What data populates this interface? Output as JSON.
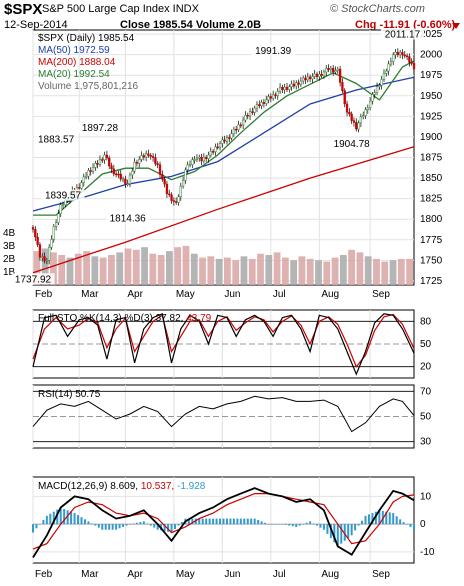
{
  "header": {
    "symbol": "$SPX",
    "name": "S&P 500 Large Cap Index INDX",
    "date": "12-Sep-2014",
    "quote": "Close 1985.54  Volume 2.0B",
    "change": "Chg -11.91 (-0.60%)",
    "logo": "© StockCharts.com",
    "change_color": "#c00000"
  },
  "chart_data": [
    {
      "type": "candlestick",
      "legend": [
        {
          "text": "$SPX (Daily) 1985.54",
          "color": "#000000"
        },
        {
          "text": "MA(50) 1972.59",
          "color": "#1f3fa8"
        },
        {
          "text": "MA(200) 1888.04",
          "color": "#cc0000"
        },
        {
          "text": "MA(20) 1992.54",
          "color": "#2e7d32"
        },
        {
          "text": "Volume 1,975,801,216",
          "color": "#666666"
        }
      ],
      "ylim": [
        1720,
        2030
      ],
      "y_ticks": [
        2025,
        2000,
        1975,
        1950,
        1925,
        1900,
        1875,
        1850,
        1825,
        1800,
        1775,
        1750,
        1725
      ],
      "volume_ticks": [
        "4B",
        "3B",
        "2B",
        "1B"
      ],
      "annotations": [
        {
          "text": "1737.92",
          "value": 1737.92
        },
        {
          "text": "1883.57",
          "value": 1883.57
        },
        {
          "text": "1839.57",
          "value": 1839.57
        },
        {
          "text": "1897.28",
          "value": 1897.28
        },
        {
          "text": "1814.36",
          "value": 1814.36
        },
        {
          "text": "1991.39",
          "value": 1991.39
        },
        {
          "text": "1904.78",
          "value": 1904.78
        },
        {
          "text": "2011.17",
          "value": 2011.17
        }
      ],
      "close_path": {
        "x": [
          0,
          3,
          6,
          9,
          12,
          16,
          20,
          24,
          28,
          31,
          34,
          38,
          41,
          44,
          47,
          50,
          54,
          58,
          62,
          66,
          70,
          73,
          77,
          80,
          84,
          88,
          92,
          96,
          101,
          104,
          107,
          110,
          113,
          116,
          120,
          124,
          128,
          132,
          136,
          140,
          144,
          148,
          152,
          156,
          160,
          165
        ],
        "close": [
          1790,
          1755,
          1750,
          1790,
          1815,
          1830,
          1840,
          1858,
          1868,
          1878,
          1860,
          1850,
          1843,
          1868,
          1875,
          1880,
          1865,
          1832,
          1818,
          1860,
          1875,
          1872,
          1880,
          1890,
          1898,
          1910,
          1924,
          1935,
          1945,
          1950,
          1958,
          1960,
          1963,
          1968,
          1973,
          1975,
          1983,
          1980,
          1930,
          1912,
          1932,
          1955,
          1975,
          2000,
          2002,
          1985
        ]
      },
      "ma50": {
        "x": [
          0,
          20,
          40,
          60,
          80,
          100,
          120,
          140,
          165
        ],
        "y": [
          1810,
          1825,
          1842,
          1852,
          1870,
          1905,
          1940,
          1957,
          1972.59
        ]
      },
      "ma200": {
        "x": [
          0,
          40,
          80,
          120,
          165
        ],
        "y": [
          1735,
          1772,
          1812,
          1850,
          1888.04
        ]
      },
      "ma20": {
        "x": [
          0,
          10,
          20,
          30,
          40,
          50,
          60,
          70,
          80,
          90,
          100,
          110,
          120,
          130,
          140,
          150,
          160,
          165
        ],
        "y": [
          1805,
          1805,
          1830,
          1855,
          1862,
          1862,
          1848,
          1858,
          1878,
          1905,
          1930,
          1950,
          1964,
          1978,
          1965,
          1945,
          1985,
          1992.54
        ]
      },
      "volume": [
        2.6,
        2.8,
        2.5,
        2.3,
        2.1,
        2.4,
        2.6,
        2.2,
        2.1,
        2.3,
        2.5,
        2.8,
        2.7,
        2.9,
        2.4,
        2.3,
        2.6,
        2.9,
        3.0,
        2.4,
        2.1,
        2.2,
        2.0,
        2.1,
        1.9,
        2.2,
        2.0,
        2.4,
        2.3,
        2.5,
        2.1,
        1.9,
        2.2,
        2.0,
        1.9,
        1.8,
        2.1,
        2.3,
        2.7,
        2.5,
        2.2,
        2.0,
        1.8,
        1.9,
        2.0,
        2.0
      ]
    },
    {
      "type": "line",
      "legend": [
        {
          "text": "Full STO %K(14,3) %D(3) 37.82,",
          "color": "#000000"
        },
        {
          "text": "43.79",
          "color": "#cc0000"
        }
      ],
      "ylim": [
        5,
        95
      ],
      "y_ticks": [
        80,
        50,
        20
      ],
      "series": [
        {
          "name": "%K(14,3)",
          "x": [
            0,
            5,
            10,
            15,
            20,
            24,
            28,
            32,
            36,
            40,
            44,
            48,
            52,
            56,
            60,
            64,
            68,
            72,
            76,
            80,
            84,
            88,
            92,
            96,
            100,
            104,
            108,
            112,
            116,
            120,
            124,
            128,
            132,
            136,
            140,
            144,
            148,
            152,
            156,
            160,
            165
          ],
          "y": [
            20,
            85,
            88,
            60,
            82,
            85,
            75,
            30,
            82,
            85,
            25,
            70,
            85,
            90,
            25,
            70,
            88,
            80,
            50,
            88,
            85,
            60,
            82,
            88,
            80,
            60,
            85,
            88,
            70,
            40,
            88,
            85,
            70,
            40,
            10,
            40,
            78,
            90,
            88,
            70,
            37.82
          ]
        },
        {
          "name": "%D(3)",
          "x": [
            0,
            5,
            10,
            15,
            20,
            24,
            28,
            32,
            36,
            40,
            44,
            48,
            52,
            56,
            60,
            64,
            68,
            72,
            76,
            80,
            84,
            88,
            92,
            96,
            100,
            104,
            108,
            112,
            116,
            120,
            124,
            128,
            132,
            136,
            140,
            144,
            148,
            152,
            156,
            160,
            165
          ],
          "y": [
            30,
            70,
            85,
            70,
            75,
            84,
            78,
            45,
            70,
            84,
            40,
            60,
            80,
            88,
            40,
            60,
            80,
            82,
            60,
            80,
            86,
            68,
            78,
            86,
            82,
            66,
            80,
            87,
            75,
            50,
            80,
            86,
            76,
            50,
            20,
            35,
            68,
            86,
            89,
            76,
            43.79
          ]
        }
      ]
    },
    {
      "type": "line",
      "legend": [
        {
          "text": "RSI(14) 50.75",
          "color": "#000000"
        }
      ],
      "ylim": [
        25,
        75
      ],
      "y_ticks": [
        70,
        50,
        30
      ],
      "series": [
        {
          "name": "RSI(14)",
          "x": [
            0,
            6,
            12,
            18,
            24,
            30,
            36,
            42,
            48,
            54,
            60,
            66,
            72,
            78,
            84,
            90,
            96,
            102,
            108,
            114,
            120,
            126,
            132,
            138,
            144,
            150,
            156,
            160,
            165
          ],
          "y": [
            42,
            55,
            60,
            58,
            62,
            55,
            48,
            52,
            58,
            54,
            42,
            52,
            58,
            56,
            60,
            62,
            66,
            64,
            65,
            62,
            62,
            63,
            58,
            38,
            45,
            58,
            64,
            62,
            50.75
          ]
        }
      ]
    },
    {
      "type": "line",
      "legend": [
        {
          "text": "MACD(12,26,9) 8.609,",
          "color": "#000000"
        },
        {
          "text": "10.537,",
          "color": "#cc0000"
        },
        {
          "text": "-1.928",
          "color": "#3399cc"
        }
      ],
      "ylim": [
        -14,
        17
      ],
      "y_ticks": [
        10,
        0,
        -10
      ],
      "series": [
        {
          "name": "MACD(12,26,9)",
          "x": [
            0,
            6,
            12,
            18,
            24,
            30,
            36,
            42,
            48,
            54,
            60,
            66,
            72,
            78,
            84,
            90,
            96,
            102,
            108,
            114,
            120,
            126,
            132,
            138,
            144,
            150,
            156,
            160,
            165
          ],
          "y": [
            -12,
            -4,
            6,
            10,
            9,
            5,
            2,
            3,
            5,
            0,
            -6,
            1,
            4,
            6,
            9,
            11,
            13,
            11,
            10,
            8,
            9,
            5,
            -8,
            -11,
            -3,
            5,
            12,
            11,
            8.609
          ]
        },
        {
          "name": "Signal",
          "x": [
            0,
            6,
            12,
            18,
            24,
            30,
            36,
            42,
            48,
            54,
            60,
            66,
            72,
            78,
            84,
            90,
            96,
            102,
            108,
            114,
            120,
            126,
            132,
            138,
            144,
            150,
            156,
            160,
            165
          ],
          "y": [
            -9,
            -7,
            0,
            6,
            8,
            7,
            4,
            3,
            4,
            2,
            -3,
            -1,
            2,
            4,
            7,
            9,
            11,
            11,
            10,
            9,
            8,
            7,
            0,
            -7,
            -6,
            0,
            8,
            10,
            10.537
          ]
        },
        {
          "name": "Histogram",
          "x": [
            0,
            6,
            12,
            18,
            24,
            30,
            36,
            42,
            48,
            54,
            60,
            66,
            72,
            78,
            84,
            90,
            96,
            102,
            108,
            114,
            120,
            126,
            132,
            138,
            144,
            150,
            156,
            160,
            165
          ],
          "y": [
            -3,
            3,
            6,
            4,
            1,
            -2,
            -2,
            0,
            1,
            -2,
            -3,
            2,
            2,
            2,
            2,
            2,
            2,
            0,
            0,
            -1,
            1,
            -2,
            -8,
            -4,
            3,
            5,
            4,
            1,
            -1.928
          ]
        }
      ]
    }
  ],
  "x_axis": {
    "months": [
      {
        "label": "Feb",
        "x": 0
      },
      {
        "label": "Mar",
        "x": 20
      },
      {
        "label": "Apr",
        "x": 40
      },
      {
        "label": "May",
        "x": 61
      },
      {
        "label": "Jun",
        "x": 82
      },
      {
        "label": "Jul",
        "x": 103
      },
      {
        "label": "Aug",
        "x": 124
      },
      {
        "label": "Sep",
        "x": 146
      }
    ],
    "x_max": 165
  },
  "colors": {
    "price_up": "#2e7d32",
    "price_down": "#cc0000",
    "ma50": "#1f3fa8",
    "ma200": "#cc0000",
    "ma20": "#2e7d32",
    "volume": "#d9a4a4",
    "volume_alt": "#a8a8a8",
    "histogram": "#3399cc"
  }
}
